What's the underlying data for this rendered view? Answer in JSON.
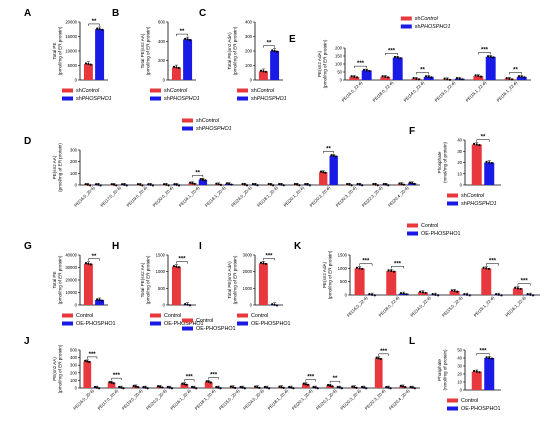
{
  "colors": {
    "control": "#e8383d",
    "treated": "#1a1ae6"
  },
  "panels": [
    {
      "letter": "A",
      "ylabel": [
        "Total PE",
        "(pmol/mg of ER protein)"
      ],
      "ylim": [
        0,
        20000
      ],
      "ticks": [
        "0",
        "5000",
        "10000",
        "15000",
        "20000"
      ],
      "categories": [
        ""
      ],
      "values": [
        [
          5500
        ],
        [
          17500
        ]
      ],
      "sig": [
        "**"
      ],
      "legend": {
        "pos": "below",
        "entries": [
          "shControl",
          "shPHOSPHO1"
        ]
      }
    },
    {
      "letter": "B",
      "ylabel": [
        "Total PE(sn2 AA)",
        "(pmol/mg of ER protein)"
      ],
      "ylim": [
        0,
        600
      ],
      "ticks": [
        "0",
        "200",
        "400",
        "600"
      ],
      "categories": [
        ""
      ],
      "values": [
        [
          130
        ],
        [
          420
        ]
      ],
      "sig": [
        "**"
      ],
      "legend": {
        "pos": "below",
        "entries": [
          "shControl",
          "shPHOSPHO1"
        ]
      }
    },
    {
      "letter": "C",
      "ylabel": [
        "Total PE(sn2 AdA)",
        "(pmol/mg of ER protein)"
      ],
      "ylim": [
        0,
        400
      ],
      "ticks": [
        "0",
        "100",
        "200",
        "300",
        "400"
      ],
      "categories": [
        ""
      ],
      "values": [
        [
          60
        ],
        [
          200
        ]
      ],
      "sig": [
        "**"
      ],
      "legend": {
        "pos": "below",
        "entries": [
          "shControl",
          "shPHOSPHO1"
        ]
      }
    },
    {
      "letter": "E",
      "ylabel": [
        "PE(sn2 AdA)",
        "(pmol/mg of ER protein)"
      ],
      "ylim": [
        0,
        200
      ],
      "ticks": [
        "0",
        "50",
        "100",
        "150",
        "200"
      ],
      "categories": [
        "PE(16:0_22:4)",
        "PE(18:0_22:4)",
        "PE(14:0_22:4)",
        "PE(15:0_22:4)",
        "PE(15:1_22:4)",
        "PE(16:1_22:4)"
      ],
      "values": [
        [
          20,
          20,
          8,
          5,
          25,
          8
        ],
        [
          60,
          140,
          20,
          8,
          145,
          20
        ]
      ],
      "sig": [
        "***",
        "***",
        "**",
        "",
        "***",
        "**"
      ],
      "legend": {
        "pos": "top",
        "entries": [
          "shControl",
          "shPHOSPHO1"
        ]
      }
    },
    {
      "letter": "D",
      "ylabel": [
        "PE(sn2 AA)",
        "(pmol/mg of ER protein)"
      ],
      "ylim": [
        0,
        300
      ],
      "ticks": [
        "0",
        "100",
        "200",
        "300"
      ],
      "categories": [
        "PE(16:0_20:4)",
        "PE(17:0_20:4)",
        "PE(19:0_20:4)",
        "PE(20:0_20:4)",
        "PE(16:1_20:4)",
        "PE(18:1_20:4)",
        "PE(24:0_20:4)",
        "PE(18:1_20:4)",
        "PE(20:1_20:4)",
        "PE(20:2_20:4)",
        "PE(20:3_20:4)",
        "PE(22:3_20:4)",
        "PE(20:4_20:4)"
      ],
      "values": [
        [
          2,
          2,
          2,
          2,
          15,
          6,
          3,
          3,
          3,
          110,
          3,
          3,
          8
        ],
        [
          2,
          2,
          2,
          2,
          45,
          9,
          3,
          3,
          3,
          250,
          3,
          3,
          15
        ]
      ],
      "sig": [
        "",
        "",
        "",
        "",
        "**",
        "",
        "",
        "",
        "",
        "**",
        "",
        "",
        ""
      ],
      "legend": {
        "pos": "top",
        "entries": [
          "shControl",
          "shPHOSPHO1"
        ]
      }
    },
    {
      "letter": "F",
      "ylabel": [
        "Phosphate",
        "(nmol/mg of protein)"
      ],
      "ylim": [
        0,
        40
      ],
      "ticks": [
        "0",
        "10",
        "20",
        "30",
        "40"
      ],
      "categories": [
        ""
      ],
      "values": [
        [
          36
        ],
        [
          20
        ]
      ],
      "sig": [
        "**"
      ],
      "legend": {
        "pos": "below",
        "entries": [
          "shControl",
          "shPHOSPHO1"
        ]
      }
    },
    {
      "letter": "G",
      "ylabel": [
        "Total PE",
        "(pmol/mg of ER protein)"
      ],
      "ylim": [
        0,
        40000
      ],
      "ticks": [
        "0",
        "10000",
        "20000",
        "30000",
        "40000"
      ],
      "categories": [
        ""
      ],
      "values": [
        [
          33000
        ],
        [
          4000
        ]
      ],
      "sig": [
        "**"
      ],
      "legend": {
        "pos": "below",
        "entries": [
          "Control",
          "OE-PHOSPHO1"
        ]
      }
    },
    {
      "letter": "H",
      "ylabel": [
        "Total PE(sn2 AA)",
        "(pmol/mg of ER protein)"
      ],
      "ylim": [
        0,
        1500
      ],
      "ticks": [
        "0",
        "500",
        "1000",
        "1500"
      ],
      "categories": [
        ""
      ],
      "values": [
        [
          1150
        ],
        [
          10
        ]
      ],
      "sig": [
        "***"
      ],
      "legend": {
        "pos": "below",
        "entries": [
          "Control",
          "OE-PHOSPHO1"
        ]
      }
    },
    {
      "letter": "I",
      "ylabel": [
        "Total PE(sn2 AdA)",
        "(pmol/mg of ER protein)"
      ],
      "ylim": [
        0,
        3000
      ],
      "ticks": [
        "0",
        "1000",
        "2000",
        "3000"
      ],
      "categories": [
        ""
      ],
      "values": [
        [
          2500
        ],
        [
          10
        ]
      ],
      "sig": [
        "***"
      ],
      "legend": {
        "pos": "below",
        "entries": [
          "Control",
          "OE-PHOSPHO1"
        ]
      }
    },
    {
      "letter": "K",
      "ylabel": [
        "PE(sn2 AdA)",
        "(pmol/mg of ER protein)"
      ],
      "ylim": [
        0,
        1500
      ],
      "ticks": [
        "0",
        "500",
        "1000",
        "1500"
      ],
      "categories": [
        "PE(16:0_22:4)",
        "PE(18:0_22:4)",
        "PE(14:0_22:4)",
        "PE(15:0_22:4)",
        "PE(15:1_22:4)",
        "PE(16:1_22:4)"
      ],
      "values": [
        [
          1000,
          900,
          100,
          150,
          1000,
          250
        ],
        [
          10,
          50,
          10,
          10,
          10,
          10
        ]
      ],
      "sig": [
        "***",
        "***",
        "",
        "",
        "***",
        "***"
      ],
      "legend": {
        "pos": "top",
        "entries": [
          "Control",
          "OE-PHOSPHO1"
        ]
      }
    },
    {
      "letter": "J",
      "ylabel": [
        "PE(sn2 AA)",
        "(pmol/mg of ER protein)"
      ],
      "ylim": [
        0,
        500
      ],
      "ticks": [
        "0",
        "100",
        "200",
        "300",
        "400",
        "500"
      ],
      "categories": [
        "PE(16:0_20:4)",
        "PE(17:0_20:4)",
        "PE(19:0_20:4)",
        "PE(20:0_20:4)",
        "PE(16:1_20:4)",
        "PE(18:1_20:4)",
        "PE(15:0_20:4)",
        "PE(24:0_20:4)",
        "PE(18:1_20:4)",
        "PE(20:1_20:4)",
        "PE(20:2_20:4)",
        "PE(20:3_20:4)",
        "PE(22:3_20:4)",
        "PE(20:4_20:4)"
      ],
      "values": [
        [
          350,
          70,
          20,
          15,
          50,
          80,
          10,
          10,
          10,
          50,
          30,
          10,
          390,
          20
        ],
        [
          5,
          5,
          5,
          5,
          5,
          5,
          5,
          5,
          5,
          5,
          5,
          5,
          5,
          5
        ]
      ],
      "sig": [
        "***",
        "***",
        "",
        "",
        "***",
        "***",
        "",
        "",
        "",
        "***",
        "**",
        "",
        "***",
        ""
      ],
      "legend": {
        "pos": "top",
        "entries": [
          "Control",
          "OE-PHOSPHO1"
        ]
      }
    },
    {
      "letter": "L",
      "ylabel": [
        "Phosphate",
        "(nmol/mg of protein)"
      ],
      "ylim": [
        0,
        50
      ],
      "ticks": [
        "0",
        "10",
        "20",
        "30",
        "40",
        "50"
      ],
      "categories": [
        ""
      ],
      "values": [
        [
          23
        ],
        [
          40
        ]
      ],
      "sig": [
        "***"
      ],
      "legend": {
        "pos": "below",
        "entries": [
          "Control",
          "OE-PHOSPHO1"
        ]
      }
    }
  ],
  "chart_data": [
    {
      "type": "bar",
      "panel": "A",
      "ylabel": "Total PE (pmol/mg of ER protein)",
      "ylim": [
        0,
        20000
      ],
      "categories": [
        ""
      ],
      "series": [
        {
          "name": "shControl",
          "values": [
            5500
          ]
        },
        {
          "name": "shPHOSPHO1",
          "values": [
            17500
          ]
        }
      ]
    },
    {
      "type": "bar",
      "panel": "B",
      "ylabel": "Total PE(sn2 AA) (pmol/mg of ER protein)",
      "ylim": [
        0,
        600
      ],
      "categories": [
        ""
      ],
      "series": [
        {
          "name": "shControl",
          "values": [
            130
          ]
        },
        {
          "name": "shPHOSPHO1",
          "values": [
            420
          ]
        }
      ]
    },
    {
      "type": "bar",
      "panel": "C",
      "ylabel": "Total PE(sn2 AdA) (pmol/mg of ER protein)",
      "ylim": [
        0,
        400
      ],
      "categories": [
        ""
      ],
      "series": [
        {
          "name": "shControl",
          "values": [
            60
          ]
        },
        {
          "name": "shPHOSPHO1",
          "values": [
            200
          ]
        }
      ]
    },
    {
      "type": "bar",
      "panel": "E",
      "ylabel": "PE(sn2 AdA) (pmol/mg of ER protein)",
      "ylim": [
        0,
        200
      ],
      "categories": [
        "PE(16:0_22:4)",
        "PE(18:0_22:4)",
        "PE(14:0_22:4)",
        "PE(15:0_22:4)",
        "PE(15:1_22:4)",
        "PE(16:1_22:4)"
      ],
      "series": [
        {
          "name": "shControl",
          "values": [
            20,
            20,
            8,
            5,
            25,
            8
          ]
        },
        {
          "name": "shPHOSPHO1",
          "values": [
            60,
            140,
            20,
            8,
            145,
            20
          ]
        }
      ]
    },
    {
      "type": "bar",
      "panel": "D",
      "ylabel": "PE(sn2 AA) (pmol/mg of ER protein)",
      "ylim": [
        0,
        300
      ],
      "categories": [
        "PE(16:0_20:4)",
        "PE(17:0_20:4)",
        "PE(19:0_20:4)",
        "PE(20:0_20:4)",
        "PE(16:1_20:4)",
        "PE(18:1_20:4)",
        "PE(24:0_20:4)",
        "PE(18:1_20:4)",
        "PE(20:1_20:4)",
        "PE(20:2_20:4)",
        "PE(20:3_20:4)",
        "PE(22:3_20:4)",
        "PE(20:4_20:4)"
      ],
      "series": [
        {
          "name": "shControl",
          "values": [
            2,
            2,
            2,
            2,
            15,
            6,
            3,
            3,
            3,
            110,
            3,
            3,
            8
          ]
        },
        {
          "name": "shPHOSPHO1",
          "values": [
            2,
            2,
            2,
            2,
            45,
            9,
            3,
            3,
            3,
            250,
            3,
            3,
            15
          ]
        }
      ]
    },
    {
      "type": "bar",
      "panel": "F",
      "ylabel": "Phosphate (nmol/mg of protein)",
      "ylim": [
        0,
        40
      ],
      "categories": [
        ""
      ],
      "series": [
        {
          "name": "shControl",
          "values": [
            36
          ]
        },
        {
          "name": "shPHOSPHO1",
          "values": [
            20
          ]
        }
      ]
    },
    {
      "type": "bar",
      "panel": "G",
      "ylabel": "Total PE (pmol/mg of ER protein)",
      "ylim": [
        0,
        40000
      ],
      "categories": [
        ""
      ],
      "series": [
        {
          "name": "Control",
          "values": [
            33000
          ]
        },
        {
          "name": "OE-PHOSPHO1",
          "values": [
            4000
          ]
        }
      ]
    },
    {
      "type": "bar",
      "panel": "H",
      "ylabel": "Total PE(sn2 AA) (pmol/mg of ER protein)",
      "ylim": [
        0,
        1500
      ],
      "categories": [
        ""
      ],
      "series": [
        {
          "name": "Control",
          "values": [
            1150
          ]
        },
        {
          "name": "OE-PHOSPHO1",
          "values": [
            10
          ]
        }
      ]
    },
    {
      "type": "bar",
      "panel": "I",
      "ylabel": "Total PE(sn2 AdA) (pmol/mg of ER protein)",
      "ylim": [
        0,
        3000
      ],
      "categories": [
        ""
      ],
      "series": [
        {
          "name": "Control",
          "values": [
            2500
          ]
        },
        {
          "name": "OE-PHOSPHO1",
          "values": [
            10
          ]
        }
      ]
    },
    {
      "type": "bar",
      "panel": "K",
      "ylabel": "PE(sn2 AdA) (pmol/mg of ER protein)",
      "ylim": [
        0,
        1500
      ],
      "categories": [
        "PE(16:0_22:4)",
        "PE(18:0_22:4)",
        "PE(14:0_22:4)",
        "PE(15:0_22:4)",
        "PE(15:1_22:4)",
        "PE(16:1_22:4)"
      ],
      "series": [
        {
          "name": "Control",
          "values": [
            1000,
            900,
            100,
            150,
            1000,
            250
          ]
        },
        {
          "name": "OE-PHOSPHO1",
          "values": [
            10,
            50,
            10,
            10,
            10,
            10
          ]
        }
      ]
    },
    {
      "type": "bar",
      "panel": "J",
      "ylabel": "PE(sn2 AA) (pmol/mg of ER protein)",
      "ylim": [
        0,
        500
      ],
      "categories": [
        "PE(16:0_20:4)",
        "PE(17:0_20:4)",
        "PE(19:0_20:4)",
        "PE(20:0_20:4)",
        "PE(16:1_20:4)",
        "PE(18:1_20:4)",
        "PE(15:0_20:4)",
        "PE(24:0_20:4)",
        "PE(18:1_20:4)",
        "PE(20:1_20:4)",
        "PE(20:2_20:4)",
        "PE(20:3_20:4)",
        "PE(22:3_20:4)",
        "PE(20:4_20:4)"
      ],
      "series": [
        {
          "name": "Control",
          "values": [
            350,
            70,
            20,
            15,
            50,
            80,
            10,
            10,
            10,
            50,
            30,
            10,
            390,
            20
          ]
        },
        {
          "name": "OE-PHOSPHO1",
          "values": [
            5,
            5,
            5,
            5,
            5,
            5,
            5,
            5,
            5,
            5,
            5,
            5,
            5,
            5
          ]
        }
      ]
    },
    {
      "type": "bar",
      "panel": "L",
      "ylabel": "Phosphate (nmol/mg of protein)",
      "ylim": [
        0,
        50
      ],
      "categories": [
        ""
      ],
      "series": [
        {
          "name": "Control",
          "values": [
            23
          ]
        },
        {
          "name": "OE-PHOSPHO1",
          "values": [
            40
          ]
        }
      ]
    }
  ]
}
